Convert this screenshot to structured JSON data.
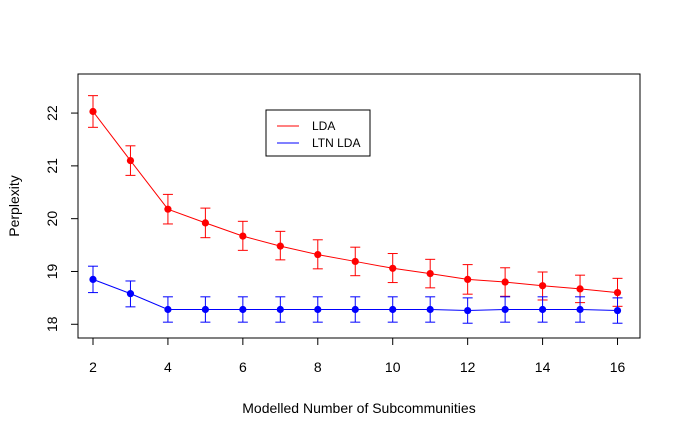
{
  "chart_data": {
    "type": "line",
    "title": "",
    "xlabel": "Modelled Number of Subcommunities",
    "ylabel": "Perplexity",
    "x": [
      2,
      3,
      4,
      5,
      6,
      7,
      8,
      9,
      10,
      11,
      12,
      13,
      14,
      15,
      16
    ],
    "xlim": [
      1.6,
      16.6
    ],
    "ylim": [
      17.74,
      22.74
    ],
    "xticks": [
      2,
      4,
      6,
      8,
      10,
      12,
      14,
      16
    ],
    "yticks": [
      18,
      19,
      20,
      21,
      22
    ],
    "grid": false,
    "legend_position": "top-center",
    "series": [
      {
        "name": "LDA",
        "color": "#ff0000",
        "values": [
          22.03,
          21.1,
          20.18,
          19.92,
          19.67,
          19.48,
          19.32,
          19.19,
          19.06,
          18.96,
          18.85,
          18.8,
          18.73,
          18.67,
          18.6
        ],
        "err_upper": [
          22.33,
          21.38,
          20.46,
          20.2,
          19.95,
          19.76,
          19.6,
          19.46,
          19.34,
          19.23,
          19.13,
          19.07,
          18.99,
          18.93,
          18.87
        ],
        "err_lower": [
          21.73,
          20.82,
          19.9,
          19.64,
          19.4,
          19.22,
          19.05,
          18.92,
          18.79,
          18.69,
          18.57,
          18.53,
          18.46,
          18.41,
          18.34
        ]
      },
      {
        "name": "LTN LDA",
        "color": "#0000ff",
        "values": [
          18.85,
          18.58,
          18.28,
          18.28,
          18.28,
          18.28,
          18.28,
          18.28,
          18.28,
          18.28,
          18.26,
          18.28,
          18.28,
          18.28,
          18.26
        ],
        "err_upper": [
          19.1,
          18.82,
          18.52,
          18.52,
          18.52,
          18.52,
          18.52,
          18.52,
          18.52,
          18.52,
          18.5,
          18.52,
          18.52,
          18.52,
          18.5
        ],
        "err_lower": [
          18.6,
          18.33,
          18.04,
          18.04,
          18.04,
          18.04,
          18.04,
          18.04,
          18.04,
          18.04,
          18.02,
          18.04,
          18.04,
          18.04,
          18.02
        ]
      }
    ]
  }
}
